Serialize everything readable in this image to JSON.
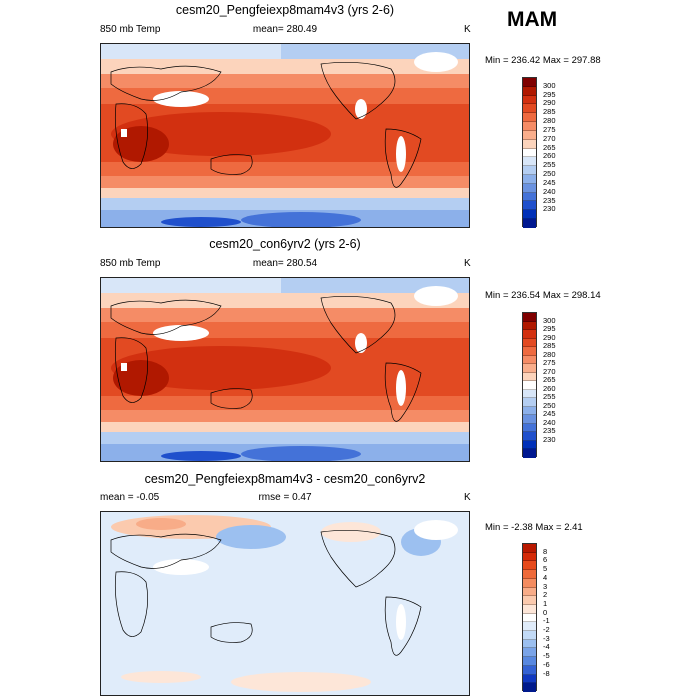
{
  "season": "MAM",
  "panels": [
    {
      "title": "cesm20_Pengfeiexp8mam4v3 (yrs 2-6)",
      "left_label": "850 mb Temp",
      "center_label": "mean= 280.49",
      "units": "K",
      "minmax": "Min = 236.42 Max = 297.88"
    },
    {
      "title": "cesm20_con6yrv2 (yrs 2-6)",
      "left_label": "850 mb Temp",
      "center_label": "mean= 280.54",
      "units": "K",
      "minmax": "Min = 236.54 Max = 298.14"
    },
    {
      "title": "cesm20_Pengfeiexp8mam4v3 - cesm20_con6yrv2",
      "left_label": "mean =  -0.05",
      "center_label": "rmse =   0.47",
      "units": "K",
      "minmax": "Min =  -2.38 Max =   2.41"
    }
  ],
  "colorbars": {
    "temp": {
      "labels": [
        "300",
        "295",
        "290",
        "285",
        "280",
        "275",
        "270",
        "265",
        "260",
        "255",
        "250",
        "245",
        "240",
        "235",
        "230"
      ],
      "colors": [
        "#7f0000",
        "#b01800",
        "#d23010",
        "#e24a22",
        "#ee6a40",
        "#f58c66",
        "#f9ae8c",
        "#fcd4bc",
        "#ffffff",
        "#d8e6f8",
        "#b4cef2",
        "#8cb0ea",
        "#6a92e0",
        "#4472d8",
        "#2050cc",
        "#0030b8",
        "#001890"
      ]
    },
    "diff": {
      "labels": [
        "8",
        "6",
        "5",
        "4",
        "3",
        "2",
        "1",
        "0",
        "-1",
        "-2",
        "-3",
        "-4",
        "-5",
        "-6",
        "-8"
      ],
      "colors": [
        "#b81800",
        "#d42a08",
        "#e64a1c",
        "#ee6a3a",
        "#f48c60",
        "#f8ac88",
        "#fbcaae",
        "#fde6d8",
        "#ffffff",
        "#e0ecfa",
        "#c2daf6",
        "#9cc0f0",
        "#7aa4e8",
        "#5888e0",
        "#3462d4",
        "#1038c0",
        "#001a8c"
      ]
    }
  },
  "chart_data": [
    {
      "type": "heatmap",
      "title": "cesm20_Pengfeiexp8mam4v3 (yrs 2-6)",
      "variable": "850 mb Temp",
      "units": "K",
      "mean": 280.49,
      "min": 236.42,
      "max": 297.88,
      "contour_levels": [
        230,
        235,
        240,
        245,
        250,
        255,
        260,
        265,
        270,
        275,
        280,
        285,
        290,
        295,
        300
      ]
    },
    {
      "type": "heatmap",
      "title": "cesm20_con6yrv2 (yrs 2-6)",
      "variable": "850 mb Temp",
      "units": "K",
      "mean": 280.54,
      "min": 236.54,
      "max": 298.14,
      "contour_levels": [
        230,
        235,
        240,
        245,
        250,
        255,
        260,
        265,
        270,
        275,
        280,
        285,
        290,
        295,
        300
      ]
    },
    {
      "type": "heatmap",
      "title": "cesm20_Pengfeiexp8mam4v3 - cesm20_con6yrv2",
      "units": "K",
      "mean": -0.05,
      "rmse": 0.47,
      "min": -2.38,
      "max": 2.41,
      "contour_levels": [
        -8,
        -6,
        -5,
        -4,
        -3,
        -2,
        -1,
        0,
        1,
        2,
        3,
        4,
        5,
        6,
        8
      ]
    }
  ]
}
